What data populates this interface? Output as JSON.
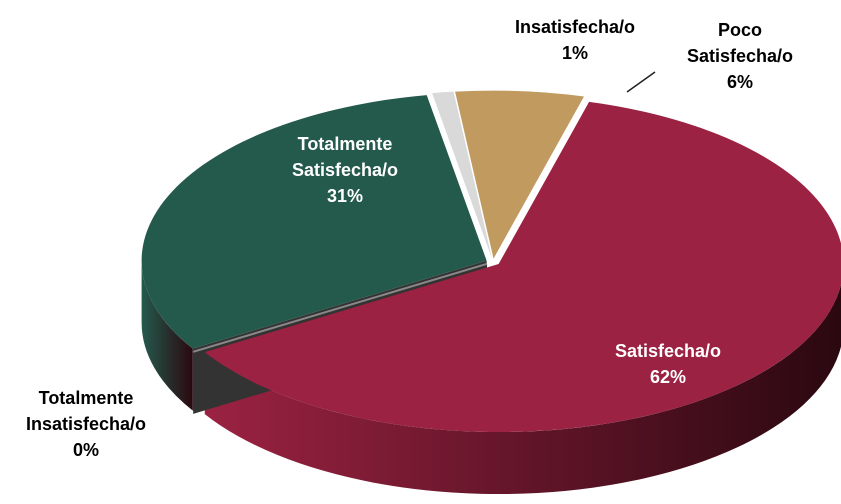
{
  "chart_data": {
    "type": "pie",
    "categories": [
      "Insatisfecha/o",
      "Poco Satisfecha/o",
      "Satisfecha/o",
      "Totalmente Insatisfecha/o",
      "Totalmente Satisfecha/o"
    ],
    "values": [
      1,
      6,
      62,
      0,
      31
    ],
    "value_labels": [
      "1%",
      "6%",
      "62%",
      "0%",
      "31%"
    ],
    "colors": [
      "#d9d9d9",
      "#c09a5f",
      "#9b2242",
      "#9a9a9a",
      "#245a4c"
    ]
  }
}
